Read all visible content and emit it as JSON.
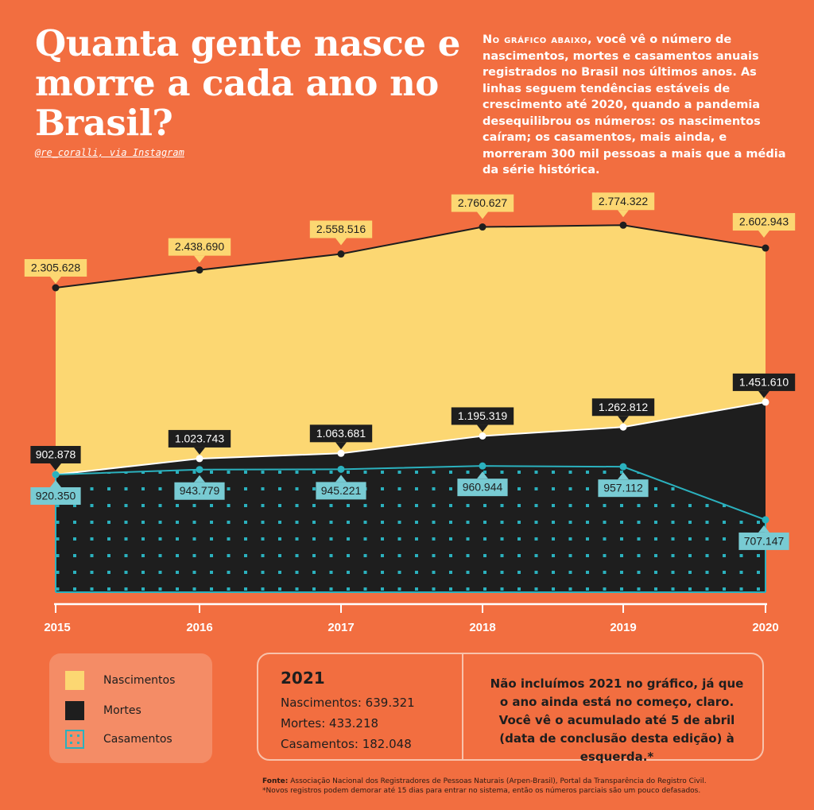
{
  "header": {
    "title": "Quanta gente nasce e morre a cada ano no Brasil?",
    "credit": "@re_coralli, via Instagram",
    "intro_lead": "No gráfico abaixo,",
    "intro_body": " você vê o número de nascimentos, mortes e casamentos anuais registrados no Brasil nos últimos anos.  As linhas seguem tendências estáveis de crescimento até 2020, quando a pandemia desequilibrou os números: os nascimentos caíram; os casamentos, mais ainda, e morreram 300 mil pessoas a mais que a média da série histórica."
  },
  "colors": {
    "background": "#f26e40",
    "nascimentos": "#fcd772",
    "mortes": "#1e1e1e",
    "casamentos": "#2bb1be",
    "label_casamentos_bg": "#78cbd3"
  },
  "chart_data": {
    "type": "area",
    "x": [
      "2015",
      "2016",
      "2017",
      "2018",
      "2019",
      "2020"
    ],
    "series": [
      {
        "name": "Nascimentos",
        "values": [
          2305628,
          2438690,
          2558516,
          2760627,
          2774322,
          2602943
        ],
        "labels": [
          "2.305.628",
          "2.438.690",
          "2.558.516",
          "2.760.627",
          "2.774.322",
          "2.602.943"
        ]
      },
      {
        "name": "Mortes",
        "values": [
          902878,
          1023743,
          1063681,
          1195319,
          1262812,
          1451610
        ],
        "labels": [
          "902.878",
          "1.023.743",
          "1.063.681",
          "1.195.319",
          "1.262.812",
          "1.451.610"
        ]
      },
      {
        "name": "Casamentos",
        "values": [
          920350,
          943779,
          945221,
          960944,
          957112,
          707147
        ],
        "labels": [
          "920.350",
          "943.779",
          "945.221",
          "960.944",
          "957.112",
          "707.147"
        ]
      }
    ],
    "grid": false
  },
  "legend": {
    "items": [
      {
        "label": "Nascimentos"
      },
      {
        "label": "Mortes"
      },
      {
        "label": "Casamentos"
      }
    ]
  },
  "box2021": {
    "year": "2021",
    "nascimentos": "Nascimentos: 639.321",
    "mortes": "Mortes: 433.218",
    "casamentos": "Casamentos: 182.048",
    "note": "Não incluímos 2021 no gráfico, já que o ano ainda está no começo, claro. Você vê o acumulado até 5 de abril (data de conclusão desta edição) à esquerda.*"
  },
  "footer": {
    "source_label": "Fonte:",
    "source_text": " Associação Nacional dos Registradores de Pessoas Naturais (Arpen-Brasil), Portal da Transparência do Registro Civil.",
    "note": "*Novos registros podem demorar até 15 dias para entrar no sistema, então os números parciais são um pouco defasados."
  }
}
